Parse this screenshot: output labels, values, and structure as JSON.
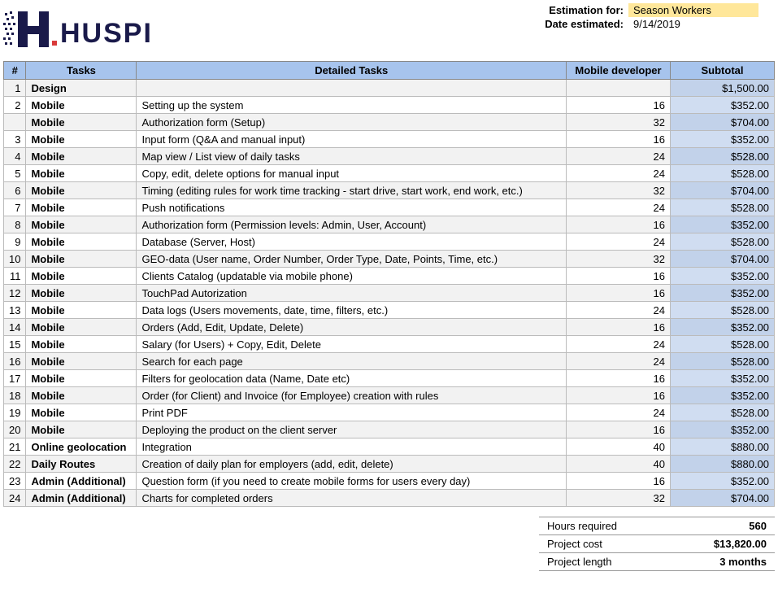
{
  "logo_text": "HUSPI",
  "meta": {
    "estimation_label": "Estimation for:",
    "estimation_value": "Season Workers",
    "date_label": "Date estimated:",
    "date_value": "9/14/2019"
  },
  "columns": {
    "num": "#",
    "tasks": "Tasks",
    "detail": "Detailed Tasks",
    "hours": "Mobile developer",
    "subtotal": "Subtotal"
  },
  "rows": [
    {
      "num": "1",
      "task": "Design",
      "detail": "",
      "hours": "",
      "subtotal": "$1,500.00",
      "alt": true
    },
    {
      "num": "2",
      "task": "Mobile",
      "detail": "Setting up the system",
      "hours": "16",
      "subtotal": "$352.00",
      "alt": false
    },
    {
      "num": "",
      "task": "Mobile",
      "detail": "Authorization form (Setup)",
      "hours": "32",
      "subtotal": "$704.00",
      "alt": true
    },
    {
      "num": "3",
      "task": "Mobile",
      "detail": "Input form (Q&A and manual input)",
      "hours": "16",
      "subtotal": "$352.00",
      "alt": false
    },
    {
      "num": "4",
      "task": "Mobile",
      "detail": "Map view / List view of daily tasks",
      "hours": "24",
      "subtotal": "$528.00",
      "alt": true
    },
    {
      "num": "5",
      "task": "Mobile",
      "detail": "Copy, edit, delete options for manual input",
      "hours": "24",
      "subtotal": "$528.00",
      "alt": false
    },
    {
      "num": "6",
      "task": "Mobile",
      "detail": "Timing (editing rules for work time tracking - start drive, start work, end work, etc.)",
      "hours": "32",
      "subtotal": "$704.00",
      "alt": true
    },
    {
      "num": "7",
      "task": "Mobile",
      "detail": "Push notifications",
      "hours": "24",
      "subtotal": "$528.00",
      "alt": false
    },
    {
      "num": "8",
      "task": "Mobile",
      "detail": "Authorization form (Permission levels: Admin, User, Account)",
      "hours": "16",
      "subtotal": "$352.00",
      "alt": true
    },
    {
      "num": "9",
      "task": "Mobile",
      "detail": "Database (Server, Host)",
      "hours": "24",
      "subtotal": "$528.00",
      "alt": false
    },
    {
      "num": "10",
      "task": "Mobile",
      "detail": "GEO-data (User name, Order Number, Order Type, Date, Points, Time, etc.)",
      "hours": "32",
      "subtotal": "$704.00",
      "alt": true
    },
    {
      "num": "11",
      "task": "Mobile",
      "detail": "Clients Catalog (updatable via mobile phone)",
      "hours": "16",
      "subtotal": "$352.00",
      "alt": false
    },
    {
      "num": "12",
      "task": "Mobile",
      "detail": "TouchPad Autorization",
      "hours": "16",
      "subtotal": "$352.00",
      "alt": true
    },
    {
      "num": "13",
      "task": "Mobile",
      "detail": "Data logs (Users movements, date, time, filters, etc.)",
      "hours": "24",
      "subtotal": "$528.00",
      "alt": false
    },
    {
      "num": "14",
      "task": "Mobile",
      "detail": "Orders (Add, Edit, Update, Delete)",
      "hours": "16",
      "subtotal": "$352.00",
      "alt": true
    },
    {
      "num": "15",
      "task": "Mobile",
      "detail": "Salary (for Users) + Copy, Edit, Delete",
      "hours": "24",
      "subtotal": "$528.00",
      "alt": false
    },
    {
      "num": "16",
      "task": "Mobile",
      "detail": "Search for each page",
      "hours": "24",
      "subtotal": "$528.00",
      "alt": true
    },
    {
      "num": "17",
      "task": "Mobile",
      "detail": "Filters for geolocation data (Name, Date etc)",
      "hours": "16",
      "subtotal": "$352.00",
      "alt": false
    },
    {
      "num": "18",
      "task": "Mobile",
      "detail": "Order (for Client) and Invoice (for Employee) creation with rules",
      "hours": "16",
      "subtotal": "$352.00",
      "alt": true
    },
    {
      "num": "19",
      "task": "Mobile",
      "detail": "Print PDF",
      "hours": "24",
      "subtotal": "$528.00",
      "alt": false
    },
    {
      "num": "20",
      "task": "Mobile",
      "detail": "Deploying the product on the client server",
      "hours": "16",
      "subtotal": "$352.00",
      "alt": true
    },
    {
      "num": "21",
      "task": "Online geolocation",
      "detail": "Integration",
      "hours": "40",
      "subtotal": "$880.00",
      "alt": false
    },
    {
      "num": "22",
      "task": "Daily Routes",
      "detail": "Creation of daily plan for employers (add, edit, delete)",
      "hours": "40",
      "subtotal": "$880.00",
      "alt": true
    },
    {
      "num": "23",
      "task": "Admin (Additional)",
      "detail": "Question form (if you need to create mobile forms for users every day)",
      "hours": "16",
      "subtotal": "$352.00",
      "alt": false
    },
    {
      "num": "24",
      "task": "Admin (Additional)",
      "detail": "Charts for completed orders",
      "hours": "32",
      "subtotal": "$704.00",
      "alt": true
    }
  ],
  "summary": [
    {
      "k": "Hours required",
      "v": "560"
    },
    {
      "k": "Project cost",
      "v": "$13,820.00"
    },
    {
      "k": "Project length",
      "v": "3 months"
    }
  ],
  "logo_colors": {
    "primary": "#1a1a4a",
    "accent": "#d93a3a"
  }
}
